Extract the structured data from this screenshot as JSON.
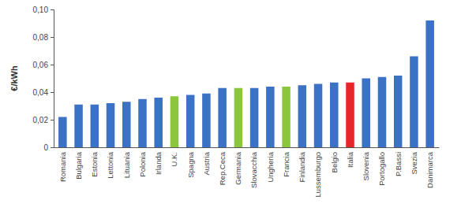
{
  "chart_data": {
    "type": "bar",
    "y_label": "€/kWh",
    "categories": [
      "Romania",
      "Bulgaria",
      "Estonia",
      "Lettonia",
      "Lituania",
      "Polonia",
      "Irlanda",
      "U.K.",
      "Spagna",
      "Austria",
      "Rep.Ceca",
      "Germania",
      "Slovacchia",
      "Ungheria",
      "Francia",
      "Finlandia",
      "Lussemburgo",
      "Belgio",
      "Italia",
      "Slovenia",
      "Portogallo",
      "P.Bassi",
      "Svezia",
      "Danimarca"
    ],
    "values": [
      0.022,
      0.031,
      0.031,
      0.032,
      0.033,
      0.035,
      0.036,
      0.037,
      0.038,
      0.039,
      0.043,
      0.043,
      0.043,
      0.044,
      0.044,
      0.045,
      0.046,
      0.047,
      0.047,
      0.05,
      0.051,
      0.052,
      0.066,
      0.092
    ],
    "colors": [
      "#3b72c6",
      "#3b72c6",
      "#3b72c6",
      "#3b72c6",
      "#3b72c6",
      "#3b72c6",
      "#3b72c6",
      "#8cc63f",
      "#3b72c6",
      "#3b72c6",
      "#3b72c6",
      "#8cc63f",
      "#3b72c6",
      "#3b72c6",
      "#8cc63f",
      "#3b72c6",
      "#3b72c6",
      "#3b72c6",
      "#e8262a",
      "#3b72c6",
      "#3b72c6",
      "#3b72c6",
      "#3b72c6",
      "#3b72c6"
    ],
    "ylim": [
      0,
      0.1
    ],
    "yticks": [
      0,
      {
        "value": 0.02,
        "label": "0,02"
      },
      {
        "value": 0.04,
        "label": "0,04"
      },
      {
        "value": 0.06,
        "label": "0,06"
      },
      {
        "value": 0.08,
        "label": "0,08"
      },
      {
        "value": 0.1,
        "label": "0,10"
      }
    ],
    "grid": false
  }
}
